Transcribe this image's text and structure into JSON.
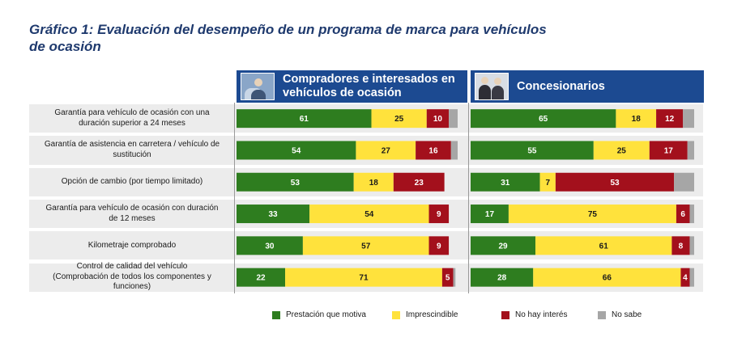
{
  "chart_data": {
    "type": "bar",
    "stacked": true,
    "orientation": "horizontal",
    "title": "Gráfico 1: Evaluación del desempeño de un programa de marca para vehículos de ocasión",
    "title_lines": [
      "Gráfico 1: Evaluación del desempeño de un programa de marca para vehículos",
      "de ocasión"
    ],
    "categories": [
      "Garantía para vehículo de ocasión con una duración superior a 24 meses",
      "Garantía de asistencia en carretera / vehículo de sustitución",
      "Opción de cambio (por tiempo limitado)",
      "Garantía para vehículo de ocasión con duración de 12 meses",
      "Kilometraje comprobado",
      "Control de calidad del vehículo (Comprobación de todos los componentes y funciones)"
    ],
    "category_lines": [
      [
        "Garantía para vehículo de ocasión con una",
        "duración superior a 24 meses"
      ],
      [
        "Garantía de asistencia en carretera / vehículo de",
        "sustitución"
      ],
      [
        "Opción de cambio (por tiempo limitado)"
      ],
      [
        "Garantía para vehículo de ocasión con duración",
        "de 12 meses"
      ],
      [
        "Kilometraje comprobado"
      ],
      [
        "Control de calidad del vehículo",
        "(Comprobación de todos los componentes y",
        "funciones)"
      ]
    ],
    "legend": [
      "Prestación que motiva",
      "Imprescindible",
      "No hay interés",
      "No sabe"
    ],
    "colors": [
      "#2e7d1f",
      "#ffe23c",
      "#a3101c",
      "#a6a6a6"
    ],
    "panels": [
      {
        "title_lines": [
          "Compradores e interesados en",
          "vehículos de ocasión"
        ],
        "rows": [
          [
            61,
            25,
            10,
            4
          ],
          [
            54,
            27,
            16,
            3
          ],
          [
            53,
            18,
            23,
            0
          ],
          [
            33,
            54,
            9,
            0
          ],
          [
            30,
            57,
            9,
            0
          ],
          [
            22,
            71,
            5,
            1
          ]
        ]
      },
      {
        "title_lines": [
          "Concesionarios"
        ],
        "rows": [
          [
            65,
            18,
            12,
            5
          ],
          [
            55,
            25,
            17,
            3
          ],
          [
            31,
            7,
            53,
            9
          ],
          [
            17,
            75,
            6,
            2
          ],
          [
            29,
            61,
            8,
            2
          ],
          [
            28,
            66,
            4,
            2
          ]
        ]
      }
    ]
  },
  "icons": [
    "buyer-photo-icon",
    "dealer-photo-icon"
  ]
}
